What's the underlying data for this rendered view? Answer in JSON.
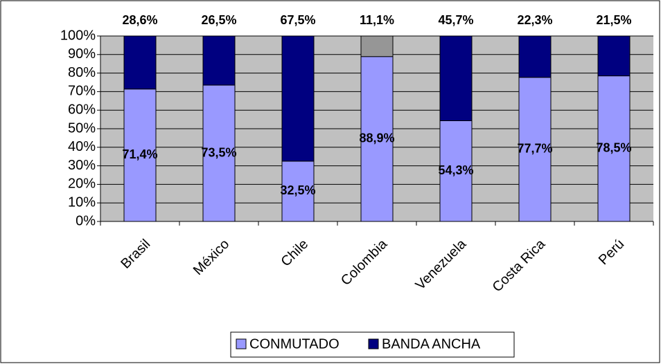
{
  "chart_data": {
    "type": "stacked_bar",
    "categories": [
      "Brasil",
      "México",
      "Chile",
      "Colombia",
      "Venezuela",
      "Costa Rica",
      "Perú"
    ],
    "series": [
      {
        "name": "CONMUTADO",
        "color": "#9999ff",
        "values": [
          71.4,
          73.5,
          32.5,
          88.9,
          54.3,
          77.7,
          78.5
        ],
        "value_labels": [
          "71,4%",
          "73,5%",
          "32,5%",
          "88,9%",
          "54,3%",
          "77,7%",
          "78,5%"
        ]
      },
      {
        "name": "BANDA ANCHA",
        "color": "#000080",
        "colors": [
          "#000080",
          "#000080",
          "#000080",
          "#969696",
          "#000080",
          "#000080",
          "#000080"
        ],
        "label_colors": [
          "#000000",
          "#000000",
          "#000000",
          "#0000ff",
          "#000000",
          "#000000",
          "#000000"
        ],
        "values": [
          28.6,
          26.5,
          67.5,
          11.1,
          45.7,
          22.3,
          21.5
        ],
        "value_labels": [
          "28,6%",
          "26,5%",
          "67,5%",
          "11,1%",
          "45,7%",
          "22,3%",
          "21,5%"
        ]
      }
    ],
    "ylim": [
      0,
      100
    ],
    "yticks": [
      {
        "value": 0,
        "label": "0%"
      },
      {
        "value": 10,
        "label": "10%"
      },
      {
        "value": 20,
        "label": "20%"
      },
      {
        "value": 30,
        "label": "30%"
      },
      {
        "value": 40,
        "label": "40%"
      },
      {
        "value": 50,
        "label": "50%"
      },
      {
        "value": 60,
        "label": "60%"
      },
      {
        "value": 70,
        "label": "70%"
      },
      {
        "value": 80,
        "label": "80%"
      },
      {
        "value": 90,
        "label": "90%"
      },
      {
        "value": 100,
        "label": "100%"
      }
    ],
    "grid": true,
    "plot_background": "#c0c0c0",
    "legend": "bottom"
  }
}
